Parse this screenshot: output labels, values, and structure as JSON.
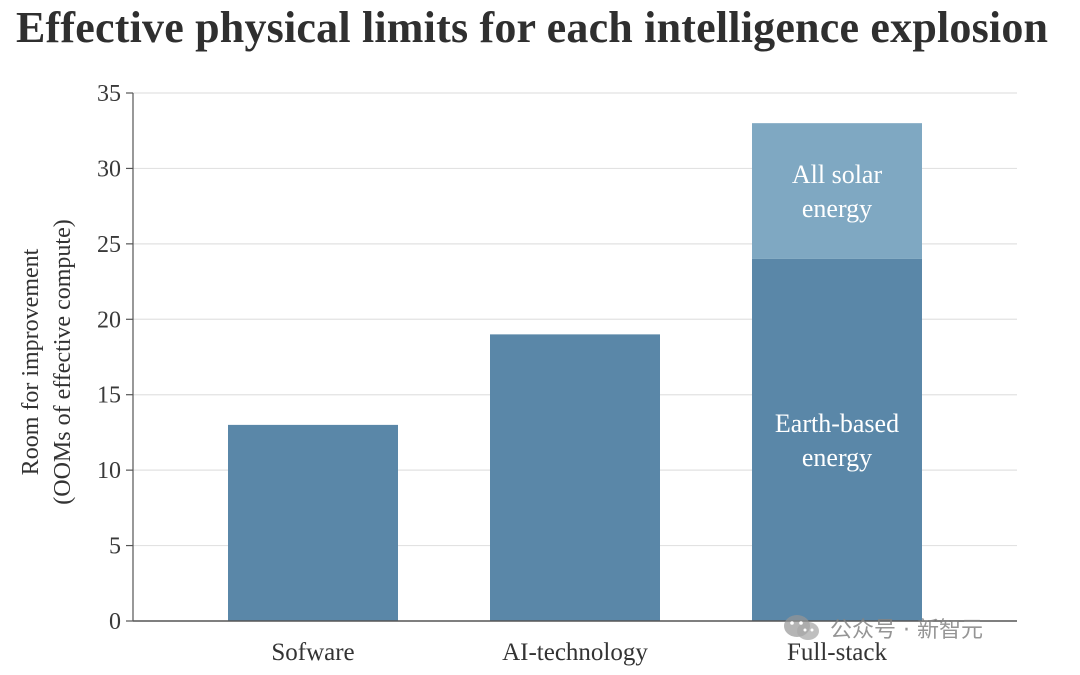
{
  "title": "Effective physical limits for each intelligence explosion",
  "watermark": {
    "text": "公众号 · 新智元",
    "icon": "wechat-icon"
  },
  "chart_data": {
    "type": "bar",
    "stacked": true,
    "title": "Effective physical limits for each intelligence explosion",
    "xlabel": "",
    "ylabel": "Room for improvement",
    "ylabel_sub": "(OOMs of effective compute)",
    "ylim": [
      0,
      35
    ],
    "yticks": [
      0,
      5,
      10,
      15,
      20,
      25,
      30,
      35
    ],
    "grid": true,
    "categories": [
      "Sofware",
      "AI-technology",
      "Full-stack"
    ],
    "series": [
      {
        "name": "Earth-based energy",
        "values": [
          13,
          19,
          24
        ],
        "color": "#5a87a8"
      },
      {
        "name": "All solar energy",
        "values": [
          0,
          0,
          9
        ],
        "color": "#7fa8c2"
      }
    ],
    "annotations": [
      {
        "category": "Full-stack",
        "series": "All solar energy",
        "lines": [
          "All solar",
          "energy"
        ]
      },
      {
        "category": "Full-stack",
        "series": "Earth-based energy",
        "lines": [
          "Earth-based",
          "energy"
        ]
      }
    ]
  }
}
